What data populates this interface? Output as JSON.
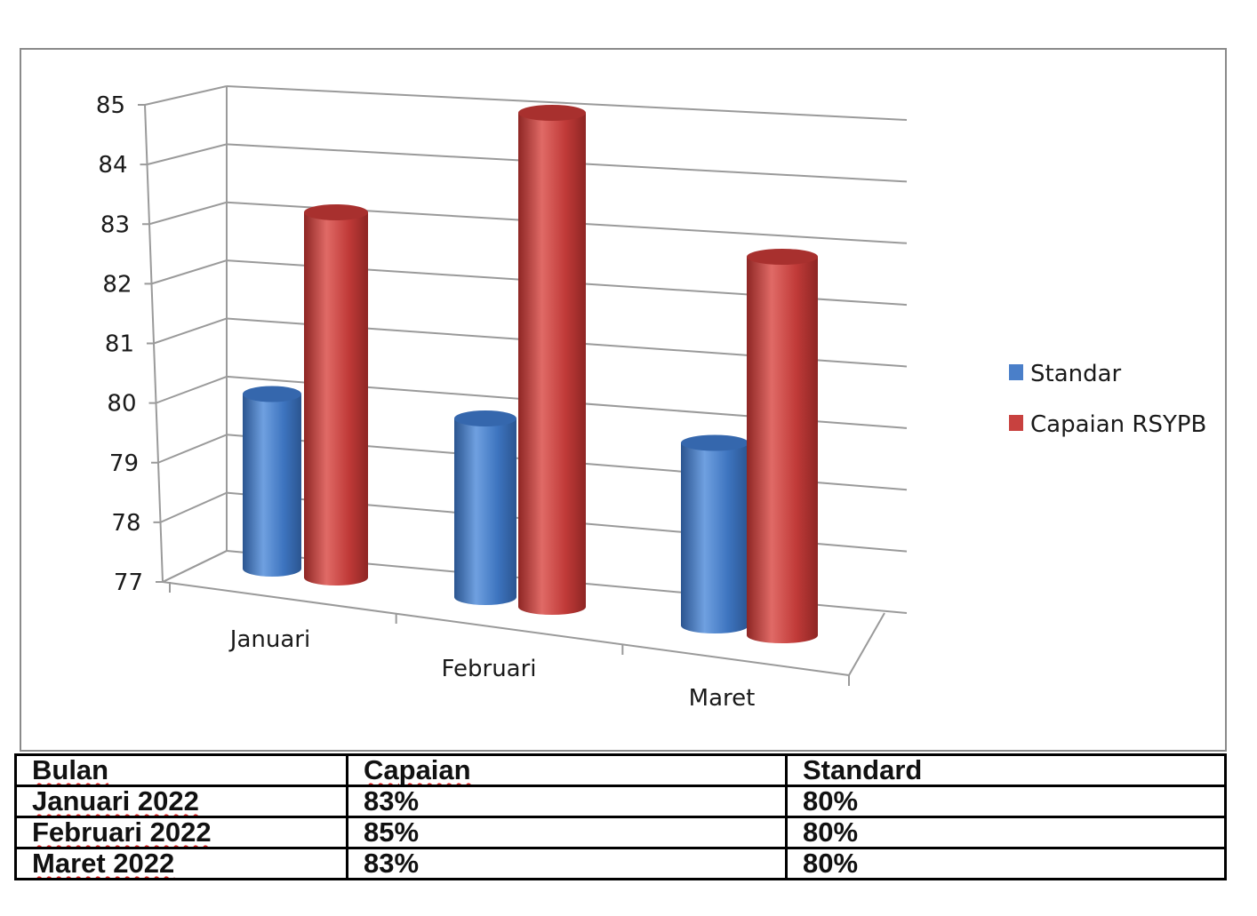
{
  "chart_data": {
    "type": "bar",
    "style": "3d-cylinder",
    "categories": [
      "Januari",
      "Februari",
      "Maret"
    ],
    "series": [
      {
        "name": "Standar",
        "values": [
          80,
          80,
          80
        ],
        "color": "#4a7fc9"
      },
      {
        "name": "Capaian RSYPB",
        "values": [
          83,
          85,
          83
        ],
        "color": "#c8413f"
      }
    ],
    "ylim": [
      77,
      85
    ],
    "yticks": [
      "77",
      "78",
      "79",
      "80",
      "81",
      "82",
      "83",
      "84",
      "85"
    ],
    "grid": true,
    "legend_position": "right"
  },
  "table": {
    "headers": [
      "Bulan",
      "Capaian",
      "Standard"
    ],
    "rows": [
      [
        "Januari 2022",
        "83%",
        "80%"
      ],
      [
        "Februari 2022",
        "85%",
        "80%"
      ],
      [
        "Maret 2022",
        "83%",
        "80%"
      ]
    ]
  }
}
